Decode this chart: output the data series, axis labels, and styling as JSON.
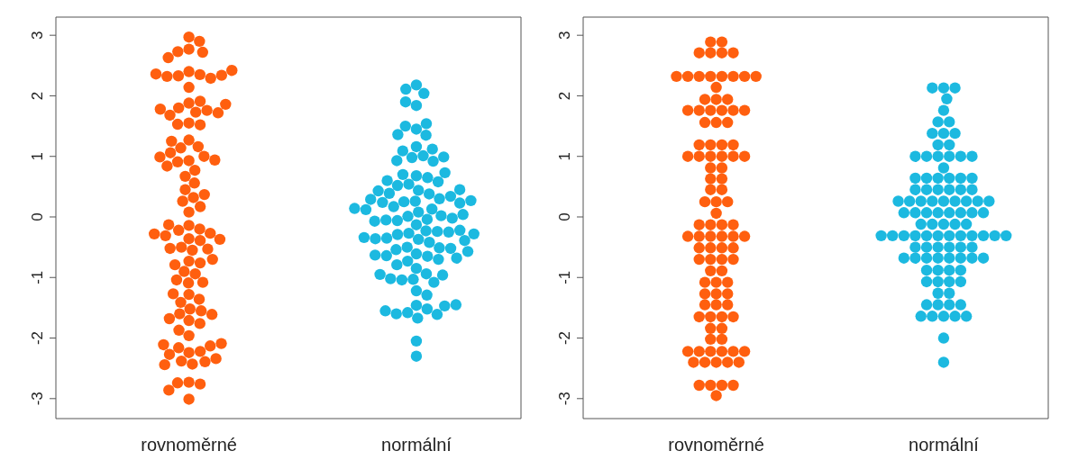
{
  "chart_data": [
    {
      "type": "scatter",
      "categories": [
        "rovnoměrné",
        "normální"
      ],
      "marker": "circle",
      "ylim": [
        -3.33,
        3.3
      ],
      "yticks": [
        -3,
        -2,
        -1,
        0,
        1,
        2,
        3
      ],
      "series": [
        {
          "color": "#ff5f0f",
          "x": [
            "rovnoměrné",
            "rovnoměrné",
            "rovnoměrné",
            "rovnoměrné",
            "rovnoměrné",
            "rovnoměrné",
            "rovnoměrné",
            "rovnoměrné",
            "rovnoměrné",
            "rovnoměrné",
            "rovnoměrné",
            "rovnoměrné",
            "rovnoměrné",
            "rovnoměrné",
            "rovnoměrné",
            "rovnoměrné",
            "rovnoměrné",
            "rovnoměrné",
            "rovnoměrné",
            "rovnoměrné",
            "rovnoměrné",
            "rovnoměrné",
            "rovnoměrné",
            "rovnoměrné",
            "rovnoměrné",
            "rovnoměrné",
            "rovnoměrné",
            "rovnoměrné",
            "rovnoměrné",
            "rovnoměrné",
            "rovnoměrné",
            "rovnoměrné",
            "rovnoměrné",
            "rovnoměrné",
            "rovnoměrné",
            "rovnoměrné",
            "rovnoměrné",
            "rovnoměrné",
            "rovnoměrné",
            "rovnoměrné",
            "rovnoměrné",
            "rovnoměrné",
            "rovnoměrné",
            "rovnoměrné",
            "rovnoměrné",
            "rovnoměrné",
            "rovnoměrné",
            "rovnoměrné",
            "rovnoměrné",
            "rovnoměrné",
            "rovnoměrné",
            "rovnoměrné",
            "rovnoměrné",
            "rovnoměrné",
            "rovnoměrné",
            "rovnoměrné",
            "rovnoměrné",
            "rovnoměrné",
            "rovnoměrné",
            "rovnoměrné",
            "rovnoměrné",
            "rovnoměrné",
            "rovnoměrné",
            "rovnoměrné",
            "rovnoměrné",
            "rovnoměrné",
            "rovnoměrné",
            "rovnoměrné",
            "rovnoměrné",
            "rovnoměrné",
            "rovnoměrné",
            "rovnoměrné",
            "rovnoměrné",
            "rovnoměrné",
            "rovnoměrné",
            "rovnoměrné",
            "rovnoměrné",
            "rovnoměrné",
            "rovnoměrné",
            "rovnoměrné",
            "rovnoměrné",
            "rovnoměrné",
            "rovnoměrné",
            "rovnoměrné",
            "rovnoměrné",
            "rovnoměrné",
            "rovnoměrné",
            "rovnoměrné",
            "rovnoměrné",
            "rovnoměrné",
            "rovnoměrné",
            "rovnoměrné",
            "rovnoměrné",
            "rovnoměrné",
            "rovnoměrné",
            "rovnoměrné",
            "rovnoměrné",
            "rovnoměrné",
            "rovnoměrné",
            "rovnoměrné"
          ],
          "values": [
            2.97,
            2.9,
            2.77,
            2.73,
            2.72,
            2.63,
            2.4,
            2.35,
            2.33,
            2.32,
            2.29,
            2.34,
            2.36,
            2.42,
            2.14,
            1.88,
            1.91,
            1.8,
            1.76,
            1.73,
            1.68,
            1.72,
            1.78,
            1.86,
            1.55,
            1.52,
            1.53,
            1.27,
            1.16,
            1.14,
            1.25,
            1.06,
            0.93,
            1.0,
            0.91,
            0.94,
            0.99,
            0.84,
            0.77,
            0.67,
            0.56,
            0.45,
            0.32,
            0.26,
            0.37,
            0.17,
            0.08,
            -0.14,
            -0.2,
            -0.22,
            -0.13,
            -0.27,
            -0.36,
            -0.31,
            -0.37,
            -0.39,
            -0.28,
            -0.5,
            -0.52,
            -0.55,
            -0.53,
            -0.73,
            -0.76,
            -0.9,
            -0.79,
            -0.7,
            -0.94,
            -1.04,
            -1.09,
            -1.08,
            -1.28,
            -1.36,
            -1.41,
            -1.27,
            -1.52,
            -1.6,
            -1.71,
            -1.55,
            -1.76,
            -1.68,
            -1.61,
            -1.96,
            -1.87,
            -2.24,
            -2.22,
            -2.16,
            -2.27,
            -2.13,
            -2.11,
            -2.09,
            -2.38,
            -2.39,
            -2.43,
            -2.44,
            -2.34,
            -2.73,
            -2.76,
            -2.74,
            -2.86,
            -3.01
          ]
        },
        {
          "color": "#1cb9e0",
          "x": [
            "normální",
            "normální",
            "normální",
            "normální",
            "normální",
            "normální",
            "normální",
            "normální",
            "normální",
            "normální",
            "normální",
            "normální",
            "normální",
            "normální",
            "normální",
            "normální",
            "normální",
            "normální",
            "normální",
            "normální",
            "normální",
            "normální",
            "normální",
            "normální",
            "normální",
            "normální",
            "normální",
            "normální",
            "normální",
            "normální",
            "normální",
            "normální",
            "normální",
            "normální",
            "normální",
            "normální",
            "normální",
            "normální",
            "normální",
            "normální",
            "normální",
            "normální",
            "normální",
            "normální",
            "normální",
            "normální",
            "normální",
            "normální",
            "normální",
            "normální",
            "normální",
            "normální",
            "normální",
            "normální",
            "normální",
            "normální",
            "normální",
            "normální",
            "normální",
            "normální",
            "normální",
            "normální",
            "normální",
            "normální",
            "normální",
            "normální",
            "normální",
            "normální",
            "normální",
            "normální",
            "normální",
            "normální",
            "normální",
            "normální",
            "normální",
            "normální",
            "normální",
            "normální",
            "normální",
            "normální",
            "normální",
            "normální",
            "normální",
            "normální",
            "normální",
            "normální",
            "normální",
            "normální",
            "normální",
            "normální",
            "normální",
            "normální",
            "normální",
            "normální",
            "normální",
            "normální",
            "normální",
            "normální",
            "normální",
            "normální"
          ],
          "values": [
            2.18,
            2.04,
            2.11,
            1.84,
            1.9,
            1.45,
            1.54,
            1.5,
            1.35,
            1.36,
            1.16,
            1.01,
            0.98,
            1.09,
            0.92,
            0.93,
            0.99,
            1.12,
            0.68,
            0.65,
            0.54,
            0.7,
            0.52,
            0.58,
            0.6,
            0.73,
            0.44,
            0.38,
            0.26,
            0.25,
            0.3,
            0.39,
            0.24,
            0.34,
            0.43,
            0.45,
            0.29,
            0.23,
            0.27,
            0.08,
            0.01,
            -0.04,
            0.13,
            0.17,
            0.02,
            0.12,
            -0.06,
            -0.05,
            -0.02,
            0.04,
            0.14,
            -0.07,
            -0.13,
            -0.23,
            -0.27,
            -0.29,
            -0.37,
            -0.24,
            -0.35,
            -0.42,
            -0.25,
            -0.36,
            -0.22,
            -0.39,
            -0.34,
            -0.28,
            -0.61,
            -0.65,
            -0.5,
            -0.54,
            -0.73,
            -0.7,
            -0.64,
            -0.51,
            -0.52,
            -0.68,
            -0.63,
            -0.57,
            -0.85,
            -0.79,
            -0.94,
            -1.03,
            -1.04,
            -1.08,
            -1.02,
            -0.96,
            -0.95,
            -1.22,
            -1.29,
            -1.46,
            -1.52,
            -1.58,
            -1.6,
            -1.67,
            -1.61,
            -1.55,
            -1.47,
            -1.45,
            -2.05,
            -2.3
          ]
        }
      ]
    },
    {
      "type": "scatter",
      "categories": [
        "rovnoměrné",
        "normální"
      ],
      "marker": "circle",
      "ylim": [
        -3.33,
        3.3
      ],
      "yticks": [
        -3,
        -2,
        -1,
        0,
        1,
        2,
        3
      ],
      "series": [
        {
          "color": "#ff5f0f",
          "x": [
            "rovnoměrné",
            "rovnoměrné",
            "rovnoměrné",
            "rovnoměrné",
            "rovnoměrné",
            "rovnoměrné",
            "rovnoměrné",
            "rovnoměrné",
            "rovnoměrné",
            "rovnoměrné",
            "rovnoměrné",
            "rovnoměrné",
            "rovnoměrné",
            "rovnoměrné",
            "rovnoměrné",
            "rovnoměrné",
            "rovnoměrné",
            "rovnoměrné",
            "rovnoměrné",
            "rovnoměrné",
            "rovnoměrné",
            "rovnoměrné",
            "rovnoměrné",
            "rovnoměrné",
            "rovnoměrné",
            "rovnoměrné",
            "rovnoměrné",
            "rovnoměrné",
            "rovnoměrné",
            "rovnoměrné",
            "rovnoměrné",
            "rovnoměrné",
            "rovnoměrné",
            "rovnoměrné",
            "rovnoměrné",
            "rovnoměrné",
            "rovnoměrné",
            "rovnoměrné",
            "rovnoměrné",
            "rovnoměrné",
            "rovnoměrné",
            "rovnoměrné",
            "rovnoměrné",
            "rovnoměrné",
            "rovnoměrné",
            "rovnoměrné",
            "rovnoměrné",
            "rovnoměrné",
            "rovnoměrné",
            "rovnoměrné",
            "rovnoměrné",
            "rovnoměrné",
            "rovnoměrné",
            "rovnoměrné",
            "rovnoměrné",
            "rovnoměrné",
            "rovnoměrné",
            "rovnoměrné",
            "rovnoměrné",
            "rovnoměrné",
            "rovnoměrné",
            "rovnoměrné",
            "rovnoměrné",
            "rovnoměrné",
            "rovnoměrné",
            "rovnoměrné",
            "rovnoměrné",
            "rovnoměrné",
            "rovnoměrné",
            "rovnoměrné",
            "rovnoměrné",
            "rovnoměrné",
            "rovnoměrné",
            "rovnoměrné",
            "rovnoměrné",
            "rovnoměrné",
            "rovnoměrné",
            "rovnoměrné",
            "rovnoměrné",
            "rovnoměrné",
            "rovnoměrné",
            "rovnoměrné",
            "rovnoměrné",
            "rovnoměrné",
            "rovnoměrné",
            "rovnoměrné",
            "rovnoměrné",
            "rovnoměrné",
            "rovnoměrné",
            "rovnoměrné",
            "rovnoměrné",
            "rovnoměrné",
            "rovnoměrné",
            "rovnoměrné",
            "rovnoměrné",
            "rovnoměrné",
            "rovnoměrné",
            "rovnoměrné",
            "rovnoměrné",
            "rovnoměrné"
          ],
          "values": [
            2.89,
            2.89,
            2.71,
            2.71,
            2.71,
            2.71,
            2.32,
            2.32,
            2.32,
            2.32,
            2.32,
            2.32,
            2.32,
            2.32,
            2.14,
            1.94,
            1.94,
            1.94,
            1.76,
            1.76,
            1.76,
            1.76,
            1.76,
            1.76,
            1.56,
            1.56,
            1.56,
            1.19,
            1.19,
            1.19,
            1.19,
            1.0,
            1.0,
            1.0,
            1.0,
            1.0,
            1.0,
            0.81,
            0.81,
            0.63,
            0.63,
            0.45,
            0.45,
            0.25,
            0.25,
            0.25,
            0.06,
            -0.13,
            -0.13,
            -0.13,
            -0.13,
            -0.32,
            -0.32,
            -0.32,
            -0.32,
            -0.32,
            -0.32,
            -0.51,
            -0.51,
            -0.51,
            -0.51,
            -0.7,
            -0.7,
            -0.7,
            -0.7,
            -0.89,
            -0.89,
            -1.08,
            -1.08,
            -1.08,
            -1.27,
            -1.27,
            -1.27,
            -1.45,
            -1.45,
            -1.45,
            -1.65,
            -1.65,
            -1.65,
            -1.65,
            -1.84,
            -1.84,
            -2.02,
            -2.02,
            -2.22,
            -2.22,
            -2.22,
            -2.22,
            -2.22,
            -2.22,
            -2.4,
            -2.4,
            -2.4,
            -2.4,
            -2.4,
            -2.78,
            -2.78,
            -2.78,
            -2.78,
            -2.95
          ]
        },
        {
          "color": "#1cb9e0",
          "x": [
            "normální",
            "normální",
            "normální",
            "normální",
            "normální",
            "normální",
            "normální",
            "normální",
            "normální",
            "normální",
            "normální",
            "normální",
            "normální",
            "normální",
            "normální",
            "normální",
            "normální",
            "normální",
            "normální",
            "normální",
            "normální",
            "normální",
            "normální",
            "normální",
            "normální",
            "normální",
            "normální",
            "normální",
            "normální",
            "normální",
            "normální",
            "normální",
            "normální",
            "normální",
            "normální",
            "normální",
            "normální",
            "normální",
            "normální",
            "normální",
            "normální",
            "normální",
            "normální",
            "normální",
            "normální",
            "normální",
            "normální",
            "normální",
            "normální",
            "normální",
            "normální",
            "normální",
            "normální",
            "normální",
            "normální",
            "normální",
            "normální",
            "normální",
            "normální",
            "normální",
            "normální",
            "normální",
            "normální",
            "normální",
            "normální",
            "normální",
            "normální",
            "normální",
            "normální",
            "normální",
            "normální",
            "normální",
            "normální",
            "normální",
            "normální",
            "normální",
            "normální",
            "normální",
            "normální",
            "normální",
            "normální",
            "normální",
            "normální",
            "normální",
            "normální",
            "normální",
            "normální",
            "normální",
            "normální",
            "normální",
            "normální",
            "normální",
            "normální",
            "normální",
            "normální",
            "normální",
            "normální",
            "normální",
            "normální",
            "normální"
          ],
          "values": [
            2.13,
            2.13,
            2.13,
            1.95,
            1.76,
            1.57,
            1.57,
            1.38,
            1.38,
            1.38,
            1.19,
            1.19,
            1.0,
            1.0,
            1.0,
            1.0,
            1.0,
            1.0,
            0.81,
            0.64,
            0.64,
            0.64,
            0.64,
            0.64,
            0.64,
            0.45,
            0.45,
            0.45,
            0.45,
            0.45,
            0.45,
            0.26,
            0.26,
            0.26,
            0.26,
            0.26,
            0.26,
            0.26,
            0.26,
            0.26,
            0.07,
            0.07,
            0.07,
            0.07,
            0.07,
            0.07,
            0.07,
            0.07,
            -0.12,
            -0.12,
            -0.12,
            -0.12,
            -0.12,
            -0.31,
            -0.31,
            -0.31,
            -0.31,
            -0.31,
            -0.31,
            -0.31,
            -0.31,
            -0.31,
            -0.31,
            -0.31,
            -0.31,
            -0.5,
            -0.5,
            -0.5,
            -0.5,
            -0.5,
            -0.5,
            -0.68,
            -0.68,
            -0.68,
            -0.68,
            -0.68,
            -0.68,
            -0.68,
            -0.68,
            -0.88,
            -0.88,
            -0.88,
            -0.88,
            -1.07,
            -1.07,
            -1.07,
            -1.07,
            -1.26,
            -1.26,
            -1.45,
            -1.45,
            -1.45,
            -1.45,
            -1.64,
            -1.64,
            -1.64,
            -1.64,
            -1.64,
            -2.0,
            -2.4
          ]
        }
      ]
    }
  ]
}
